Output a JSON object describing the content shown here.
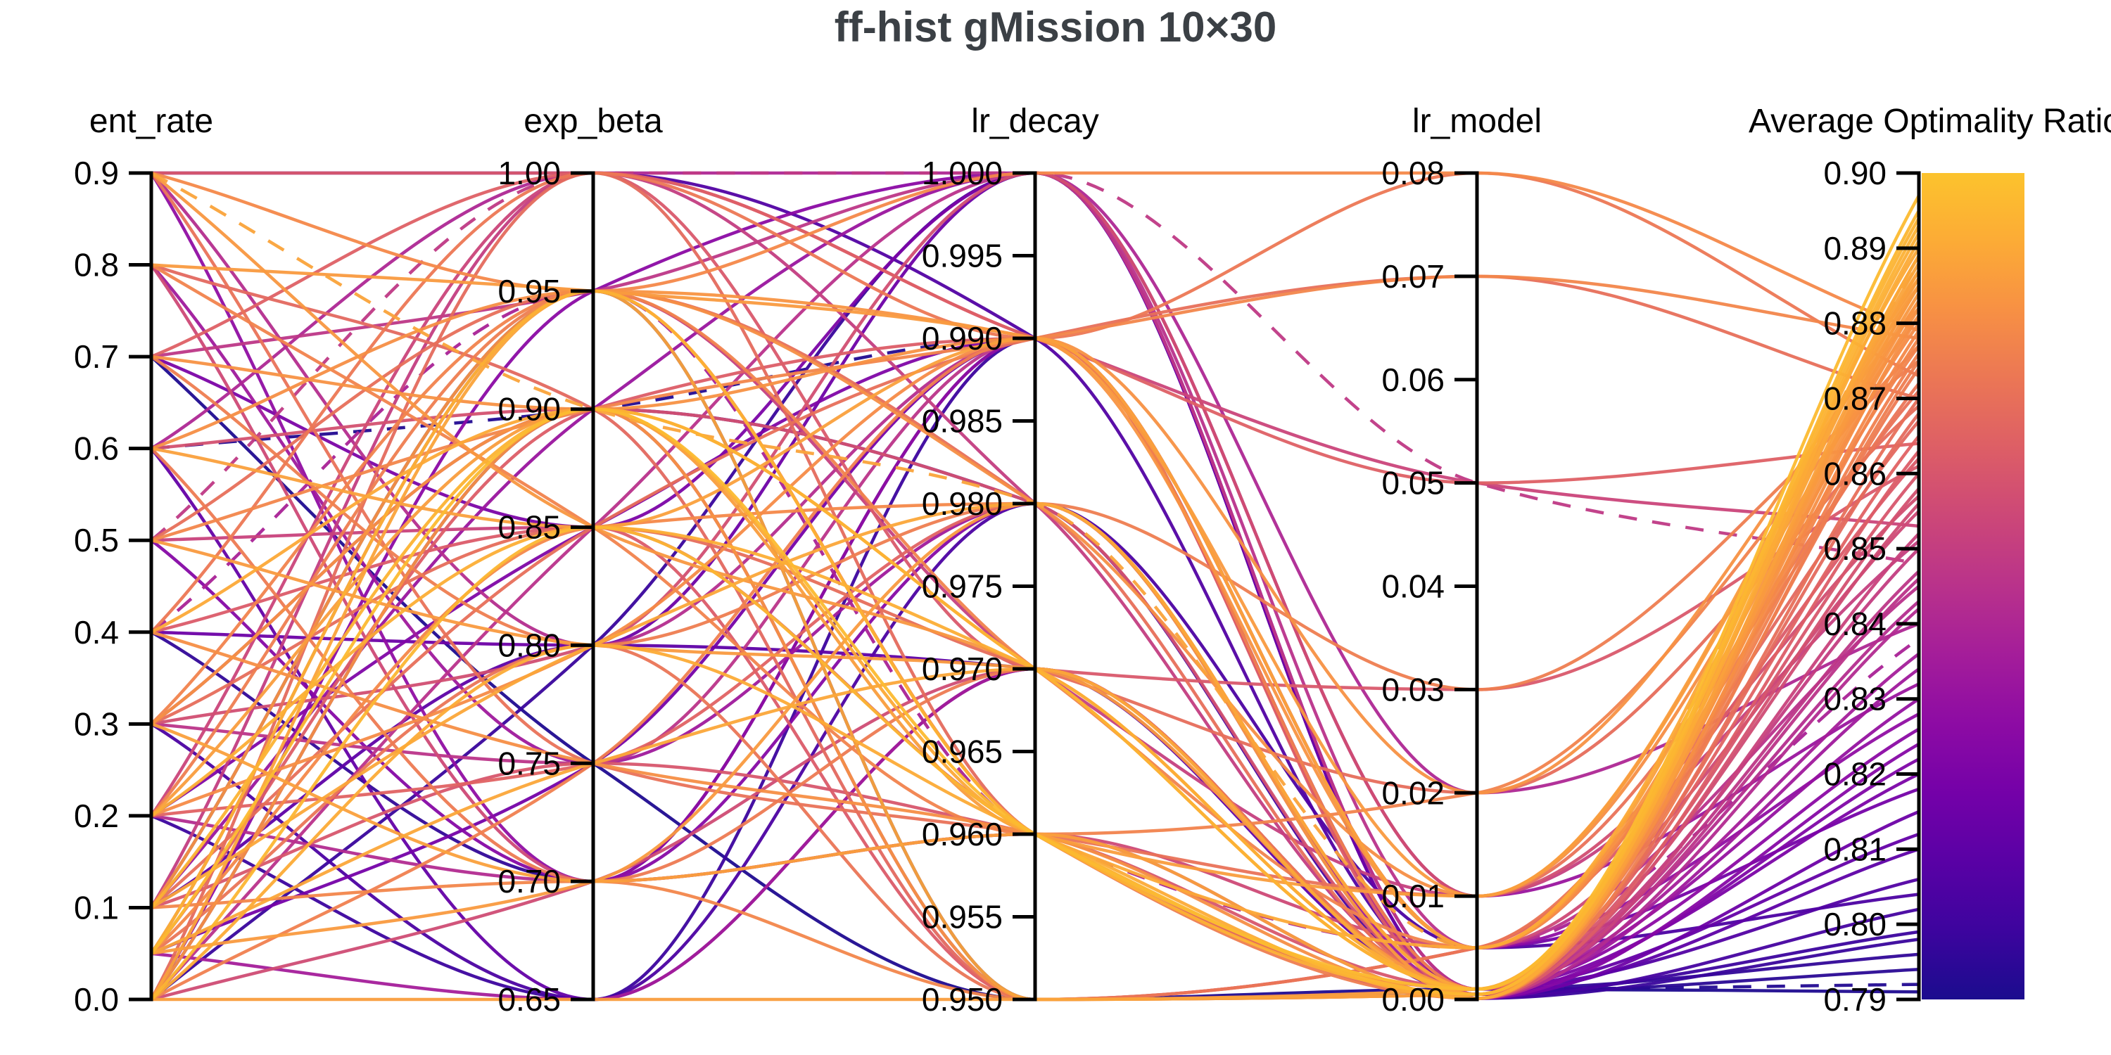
{
  "title": "ff-hist gMission 10×30",
  "title_color": "#3b4045",
  "background": "#ffffff",
  "chart_data": {
    "type": "parallel-coordinates",
    "title": "ff-hist gMission 10×30",
    "legend_position": "right-colorbar",
    "grid": false,
    "axes": [
      {
        "label": "ent_rate",
        "min": 0.0,
        "max": 0.9,
        "decimals": 1,
        "ticks": [
          0.0,
          0.1,
          0.2,
          0.3,
          0.4,
          0.5,
          0.6,
          0.7,
          0.8,
          0.9
        ]
      },
      {
        "label": "exp_beta",
        "min": 0.65,
        "max": 1.0,
        "decimals": 2,
        "ticks": [
          0.65,
          0.7,
          0.75,
          0.8,
          0.85,
          0.9,
          0.95,
          1.0
        ]
      },
      {
        "label": "lr_decay",
        "min": 0.95,
        "max": 1.0,
        "decimals": 3,
        "ticks": [
          0.95,
          0.955,
          0.96,
          0.965,
          0.97,
          0.975,
          0.98,
          0.985,
          0.99,
          0.995,
          1.0
        ]
      },
      {
        "label": "lr_model",
        "min": 0.0,
        "max": 0.08,
        "decimals": 2,
        "ticks": [
          0.0,
          0.01,
          0.02,
          0.03,
          0.04,
          0.05,
          0.06,
          0.07,
          0.08
        ]
      },
      {
        "label": "Average Optimality Ratio",
        "min": 0.79,
        "max": 0.9,
        "decimals": 2,
        "ticks": [
          0.79,
          0.8,
          0.81,
          0.82,
          0.83,
          0.84,
          0.85,
          0.86,
          0.87,
          0.88,
          0.89,
          0.9
        ]
      }
    ],
    "colorbar": {
      "label": "Average Optimality Ratio",
      "min": 0.79,
      "max": 0.9,
      "colormap": "plasma",
      "anchors_bottom_to_top": [
        "#1b0c8e",
        "#3d049e",
        "#5901a5",
        "#7401a8",
        "#8d0ba4",
        "#a41d9a",
        "#b9328b",
        "#cc4778",
        "#dd5e66",
        "#eb7655",
        "#f79044",
        "#fcab36",
        "#fcc32d"
      ]
    },
    "line_format": [
      "ent_rate",
      "exp_beta",
      "lr_decay",
      "lr_model",
      "avg_optimality_ratio",
      "dashed"
    ],
    "lines": [
      [
        0.05,
        0.9,
        0.96,
        0.001,
        0.897
      ],
      [
        0.0,
        0.85,
        0.96,
        0.0005,
        0.895
      ],
      [
        0.1,
        0.9,
        0.97,
        0.001,
        0.894
      ],
      [
        0.05,
        0.95,
        0.96,
        0.0005,
        0.893
      ],
      [
        0.2,
        0.85,
        0.97,
        0.001,
        0.892
      ],
      [
        0.0,
        0.8,
        0.96,
        0.0001,
        0.891
      ],
      [
        0.4,
        0.9,
        0.96,
        0.005,
        0.89
      ],
      [
        0.1,
        0.8,
        0.98,
        0.001,
        0.889
      ],
      [
        0.05,
        0.75,
        0.97,
        0.0005,
        0.889
      ],
      [
        0.9,
        0.9,
        0.98,
        0.005,
        0.888,
        1
      ],
      [
        0.0,
        0.95,
        0.95,
        0.001,
        0.888
      ],
      [
        0.3,
        0.7,
        0.96,
        0.0001,
        0.887
      ],
      [
        0.6,
        0.85,
        0.99,
        0.005,
        0.887
      ],
      [
        0.0,
        0.65,
        0.95,
        0.0005,
        0.886
      ],
      [
        0.2,
        0.9,
        0.96,
        0.01,
        0.886
      ],
      [
        0.5,
        0.8,
        0.97,
        0.001,
        0.885
      ],
      [
        0.05,
        0.7,
        0.98,
        0.0001,
        0.885
      ],
      [
        0.8,
        0.95,
        0.99,
        0.01,
        0.885
      ],
      [
        0.9,
        0.85,
        0.97,
        0.001,
        0.884
      ],
      [
        0.1,
        0.95,
        0.99,
        0.005,
        0.883
      ],
      [
        0.3,
        0.9,
        0.95,
        0.0005,
        0.883
      ],
      [
        0.7,
        0.9,
        0.99,
        0.02,
        0.882
      ],
      [
        0.0,
        0.9,
        0.97,
        0.001,
        0.882
      ],
      [
        0.4,
        0.75,
        0.96,
        0.0001,
        0.881
      ],
      [
        0.6,
        0.95,
        0.98,
        0.01,
        0.881
      ],
      [
        0.2,
        0.8,
        0.99,
        0.005,
        0.88
      ],
      [
        0.9,
        0.95,
        1.0,
        0.08,
        0.879
      ],
      [
        0.05,
        0.85,
        0.98,
        0.001,
        0.879
      ],
      [
        0.5,
        0.9,
        0.99,
        0.07,
        0.878
      ],
      [
        0.1,
        0.7,
        0.95,
        0.0005,
        0.878
      ],
      [
        0.8,
        0.85,
        0.96,
        0.02,
        0.877
      ],
      [
        0.3,
        0.95,
        0.97,
        0.005,
        0.877
      ],
      [
        0.0,
        0.75,
        0.99,
        0.001,
        0.876
      ],
      [
        0.7,
        0.8,
        0.98,
        0.03,
        0.875
      ],
      [
        0.2,
        0.95,
        0.96,
        0.0001,
        0.875
      ],
      [
        0.6,
        0.7,
        0.97,
        0.001,
        0.874
      ],
      [
        0.4,
        1.0,
        0.99,
        0.08,
        0.873
      ],
      [
        0.05,
        0.8,
        0.95,
        0.005,
        0.872
      ],
      [
        0.9,
        0.75,
        0.96,
        0.01,
        0.871
      ],
      [
        0.1,
        0.85,
        0.99,
        0.07,
        0.87
      ],
      [
        0.5,
        0.95,
        0.98,
        0.0005,
        0.87
      ],
      [
        0.3,
        0.85,
        0.97,
        0.02,
        0.869
      ],
      [
        0.0,
        1.0,
        0.96,
        0.001,
        0.868
      ],
      [
        0.8,
        0.9,
        0.95,
        0.005,
        0.867
      ],
      [
        0.2,
        0.75,
        0.98,
        0.001,
        0.865
      ],
      [
        0.7,
        1.0,
        0.99,
        0.05,
        0.864
      ],
      [
        0.05,
        0.9,
        0.99,
        0.0001,
        0.863
      ],
      [
        0.4,
        0.85,
        0.95,
        0.005,
        0.862
      ],
      [
        0.9,
        1.0,
        0.97,
        0.03,
        0.861
      ],
      [
        0.1,
        0.75,
        0.96,
        0.001,
        0.86
      ],
      [
        0.6,
        0.9,
        0.98,
        0.0005,
        0.858
      ],
      [
        0.3,
        0.8,
        1.0,
        0.01,
        0.857
      ],
      [
        0.0,
        0.7,
        0.97,
        0.001,
        0.856
      ],
      [
        0.8,
        0.7,
        0.96,
        0.005,
        0.855
      ],
      [
        0.2,
        1.0,
        0.99,
        0.05,
        0.853
      ],
      [
        0.5,
        0.85,
        0.96,
        0.0001,
        0.852
      ],
      [
        0.05,
        0.95,
        0.97,
        0.01,
        0.851
      ],
      [
        0.1,
        1.0,
        0.98,
        0.001,
        0.85
      ],
      [
        0.5,
        1.0,
        1.0,
        0.05,
        0.848,
        1
      ],
      [
        0.7,
        0.95,
        1.0,
        0.001,
        0.847
      ],
      [
        0.3,
        0.75,
        0.99,
        0.0005,
        0.846
      ],
      [
        0.0,
        0.85,
        1.0,
        0.005,
        0.845
      ],
      [
        0.9,
        0.8,
        0.99,
        0.001,
        0.843
      ],
      [
        0.2,
        0.7,
        0.96,
        0.0001,
        0.842
      ],
      [
        0.6,
        1.0,
        1.0,
        0.02,
        0.84
      ],
      [
        0.4,
        0.95,
        0.96,
        0.005,
        0.838,
        1
      ],
      [
        0.05,
        0.65,
        0.97,
        0.001,
        0.836
      ],
      [
        0.8,
        0.75,
        0.98,
        0.0005,
        0.834
      ],
      [
        0.1,
        0.9,
        1.0,
        0.01,
        0.832
      ],
      [
        0.3,
        0.9,
        0.95,
        0.001,
        0.83
      ],
      [
        0.9,
        0.7,
        0.99,
        0.005,
        0.828
      ],
      [
        0.0,
        0.95,
        1.0,
        0.001,
        0.826
      ],
      [
        0.5,
        0.7,
        0.98,
        0.0001,
        0.824
      ],
      [
        0.2,
        0.85,
        0.99,
        0.0005,
        0.822
      ],
      [
        0.7,
        0.85,
        1.0,
        0.001,
        0.82
      ],
      [
        0.05,
        0.75,
        0.99,
        0.005,
        0.818
      ],
      [
        0.4,
        0.8,
        1.0,
        0.0001,
        0.815
      ],
      [
        0.6,
        0.65,
        0.97,
        0.001,
        0.812
      ],
      [
        0.1,
        0.8,
        0.97,
        0.0005,
        0.81
      ],
      [
        0.9,
        1.0,
        0.99,
        0.001,
        0.806
      ],
      [
        0.3,
        0.65,
        0.98,
        0.005,
        0.804
      ],
      [
        0.0,
        0.9,
        0.98,
        0.0001,
        0.802
      ],
      [
        0.2,
        0.65,
        0.99,
        0.0005,
        0.799
      ],
      [
        0.0,
        0.8,
        1.0,
        0.0001,
        0.798
      ],
      [
        0.4,
        0.7,
        0.99,
        0.001,
        0.796
      ],
      [
        0.1,
        0.95,
        0.95,
        0.0005,
        0.794
      ],
      [
        0.6,
        0.9,
        0.99,
        0.001,
        0.792,
        1
      ],
      [
        0.7,
        0.75,
        0.95,
        0.001,
        0.791
      ]
    ]
  }
}
